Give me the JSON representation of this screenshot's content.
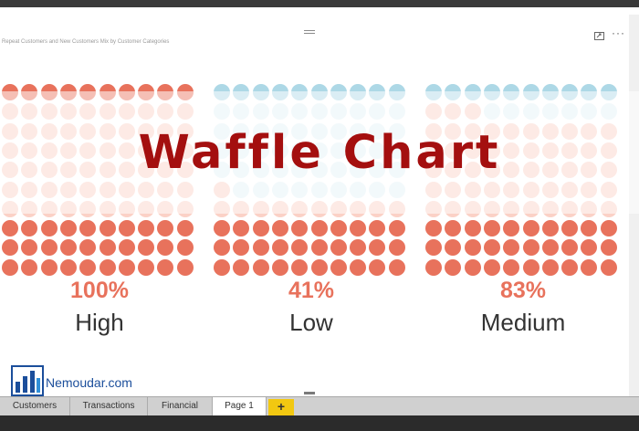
{
  "report": {
    "visual_title": "Repeat Customers and New Customers Mix by Customer Categories"
  },
  "overlay": {
    "title": "Waffle Chart"
  },
  "brand": {
    "name": "Nemoudar.com"
  },
  "colors": {
    "accent": "#e8725c",
    "low_accent": "#add8e6",
    "title_red": "#a40f0f",
    "tab_add": "#f2c811"
  },
  "icons": {
    "focus": "focus-mode-icon",
    "more": "more-options-icon",
    "logo": "nemoudar-logo-icon"
  },
  "chart_data": {
    "type": "waffle",
    "categories": [
      "High",
      "Low",
      "Medium"
    ],
    "values": [
      100,
      41,
      83
    ],
    "labels": [
      "100%",
      "41%",
      "83%"
    ]
  },
  "tabs": [
    {
      "label": "Customers",
      "active": false
    },
    {
      "label": "Transactions",
      "active": false
    },
    {
      "label": "Financial",
      "active": false
    },
    {
      "label": "Page 1",
      "active": true
    }
  ],
  "add_tab": {
    "label": "+"
  }
}
